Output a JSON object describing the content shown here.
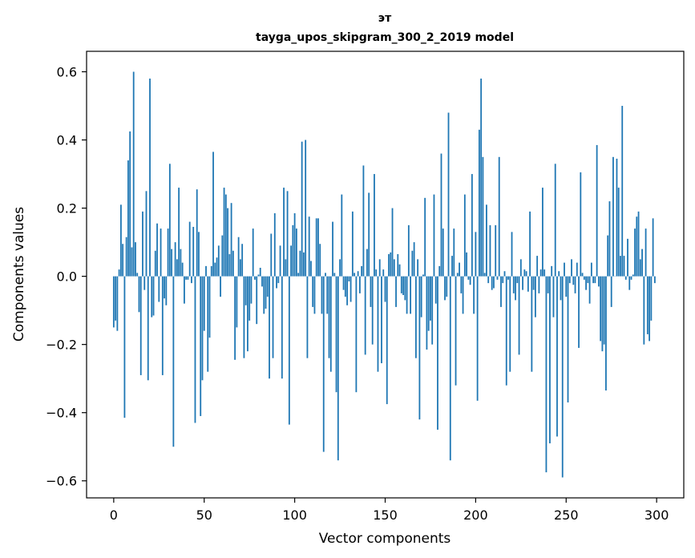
{
  "chart_data": {
    "type": "bar",
    "title_line1": "эт",
    "title_line2": "tayga_upos_skipgram_300_2_2019 model",
    "xlabel": "Vector components",
    "ylabel": "Components values",
    "xlim": [
      -15,
      315
    ],
    "ylim": [
      -0.65,
      0.66
    ],
    "xticks": [
      0,
      50,
      100,
      150,
      200,
      250,
      300
    ],
    "xtick_labels": [
      "0",
      "50",
      "100",
      "150",
      "200",
      "250",
      "300"
    ],
    "yticks": [
      -0.6,
      -0.4,
      -0.2,
      0.0,
      0.2,
      0.4,
      0.6
    ],
    "ytick_labels": [
      "−0.6",
      "−0.4",
      "−0.2",
      "0.0",
      "0.2",
      "0.4",
      "0.6"
    ],
    "bar_color": "#1f77b4",
    "grid": false,
    "values": [
      -0.15,
      -0.13,
      -0.16,
      0.02,
      0.21,
      0.095,
      -0.415,
      0.115,
      0.34,
      0.425,
      0.085,
      0.6,
      0.1,
      0.01,
      -0.105,
      -0.29,
      0.19,
      -0.04,
      0.25,
      -0.305,
      0.58,
      -0.12,
      -0.115,
      0.075,
      0.155,
      -0.075,
      0.14,
      -0.29,
      -0.065,
      -0.085,
      0.14,
      0.33,
      0.08,
      -0.5,
      0.1,
      0.05,
      0.26,
      0.08,
      0.04,
      -0.08,
      -0.01,
      -0.01,
      0.16,
      -0.02,
      0.145,
      -0.43,
      0.255,
      0.13,
      -0.41,
      -0.305,
      -0.16,
      0.03,
      -0.28,
      -0.18,
      0.03,
      0.365,
      0.04,
      0.055,
      0.09,
      -0.06,
      0.12,
      0.26,
      0.24,
      0.2,
      0.065,
      0.215,
      0.075,
      -0.245,
      -0.15,
      0.115,
      0.05,
      0.095,
      -0.24,
      -0.085,
      -0.22,
      -0.13,
      -0.08,
      0.14,
      -0.01,
      -0.14,
      0.005,
      0.025,
      -0.03,
      -0.11,
      -0.095,
      -0.06,
      -0.3,
      0.125,
      -0.24,
      0.185,
      -0.035,
      -0.02,
      0.09,
      -0.3,
      0.26,
      0.05,
      0.25,
      -0.435,
      0.09,
      0.15,
      0.185,
      0.14,
      0.01,
      0.075,
      0.395,
      0.07,
      0.4,
      -0.24,
      0.175,
      0.045,
      -0.09,
      -0.11,
      0.17,
      0.17,
      0.095,
      -0.11,
      -0.515,
      0.01,
      -0.11,
      -0.24,
      -0.28,
      0.16,
      0.01,
      -0.34,
      -0.54,
      0.05,
      0.24,
      -0.04,
      -0.06,
      -0.085,
      -0.015,
      -0.075,
      0.19,
      0.01,
      -0.34,
      0.015,
      -0.05,
      0.03,
      0.325,
      -0.23,
      0.08,
      0.245,
      -0.09,
      -0.2,
      0.3,
      0.02,
      -0.28,
      0.05,
      -0.255,
      0.02,
      -0.075,
      -0.375,
      0.065,
      0.07,
      0.2,
      0.05,
      -0.09,
      0.065,
      0.035,
      -0.05,
      -0.055,
      -0.07,
      -0.11,
      0.15,
      -0.11,
      0.075,
      0.1,
      -0.24,
      0.05,
      -0.42,
      -0.12,
      0.005,
      0.23,
      -0.215,
      -0.16,
      -0.13,
      -0.2,
      0.24,
      -0.08,
      -0.45,
      0.03,
      0.36,
      0.14,
      -0.07,
      -0.06,
      0.48,
      -0.54,
      0.06,
      0.14,
      -0.32,
      0.01,
      0.04,
      -0.05,
      -0.11,
      0.24,
      0.07,
      -0.01,
      -0.025,
      0.3,
      -0.11,
      0.13,
      -0.365,
      0.43,
      0.58,
      0.35,
      0.01,
      0.21,
      -0.02,
      0.15,
      -0.04,
      -0.035,
      0.15,
      -0.01,
      0.35,
      -0.09,
      -0.02,
      0.015,
      -0.32,
      -0.01,
      -0.28,
      0.13,
      -0.05,
      -0.07,
      -0.02,
      -0.23,
      0.05,
      -0.04,
      0.02,
      0.015,
      -0.045,
      0.19,
      -0.28,
      -0.04,
      -0.12,
      0.06,
      -0.05,
      0.02,
      0.26,
      0.02,
      -0.575,
      -0.05,
      -0.49,
      0.03,
      -0.12,
      0.33,
      -0.47,
      0.015,
      -0.07,
      -0.59,
      0.04,
      -0.06,
      -0.37,
      -0.02,
      0.05,
      -0.025,
      -0.05,
      0.04,
      -0.21,
      0.305,
      0.01,
      -0.01,
      -0.04,
      -0.02,
      -0.08,
      0.04,
      -0.02,
      -0.02,
      0.385,
      -0.03,
      -0.19,
      -0.22,
      -0.2,
      -0.335,
      0.12,
      0.22,
      -0.09,
      0.35,
      0.0,
      0.345,
      0.26,
      0.06,
      0.5,
      0.06,
      -0.01,
      0.11,
      -0.04,
      -0.01,
      0.005,
      0.14,
      0.175,
      0.19,
      0.05,
      0.08,
      -0.2,
      0.14,
      -0.17,
      -0.19,
      -0.13,
      0.17,
      -0.02
    ]
  }
}
